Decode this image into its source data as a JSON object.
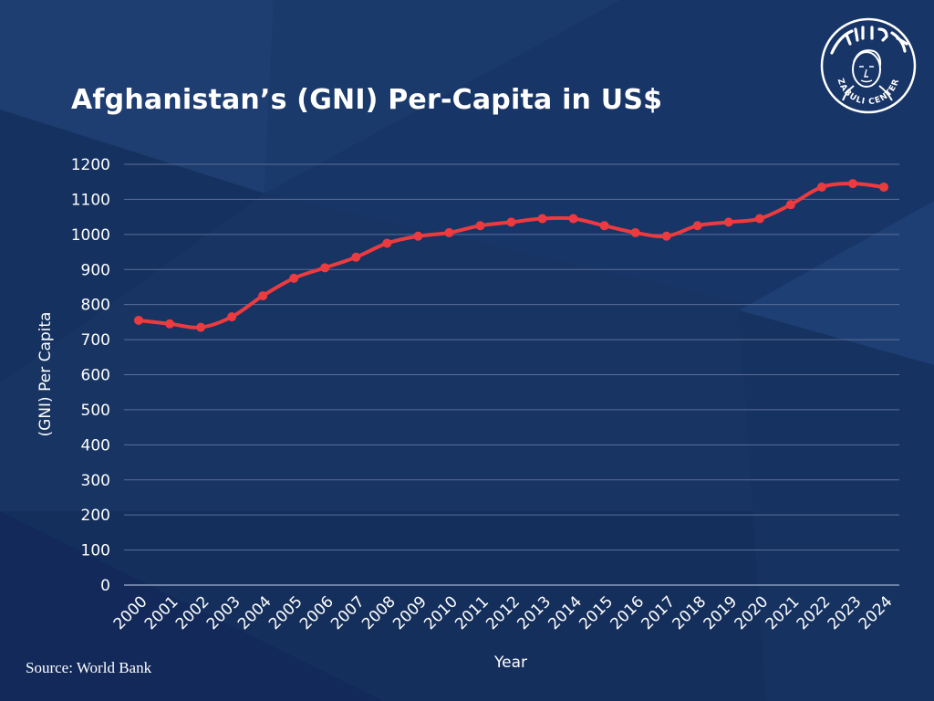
{
  "header": {
    "title": "Afghanistan’s (GNI) Per-Capita in US$"
  },
  "logo": {
    "brand_text": "ZABULI CENTER",
    "icon": "portrait-seal-icon"
  },
  "footer": {
    "source": "Source: World Bank"
  },
  "colors": {
    "background": "#183567",
    "line": "#ec3b3f",
    "grid": "#5a6f98",
    "text": "#ffffff"
  },
  "chart_data": {
    "type": "line",
    "title": "Afghanistan’s (GNI) Per-Capita in US$",
    "xlabel": "Year",
    "ylabel": "(GNI) Per Capita",
    "ylim": [
      0,
      1200
    ],
    "yticks": [
      0,
      100,
      200,
      300,
      400,
      500,
      600,
      700,
      800,
      900,
      1000,
      1100,
      1200
    ],
    "grid": true,
    "legend": "none",
    "categories": [
      "2000",
      "2001",
      "2002",
      "2003",
      "2004",
      "2005",
      "2006",
      "2007",
      "2008",
      "2009",
      "2010",
      "2011",
      "2012",
      "2013",
      "2014",
      "2015",
      "2016",
      "2017",
      "2018",
      "2019",
      "2020",
      "2021",
      "2022",
      "2023",
      "2024"
    ],
    "series": [
      {
        "values": [
          755,
          745,
          735,
          765,
          825,
          875,
          905,
          935,
          975,
          995,
          1005,
          1025,
          1035,
          1045,
          1045,
          1025,
          1005,
          995,
          1025,
          1035,
          1045,
          1085,
          1135,
          1145,
          1135
        ]
      }
    ]
  }
}
